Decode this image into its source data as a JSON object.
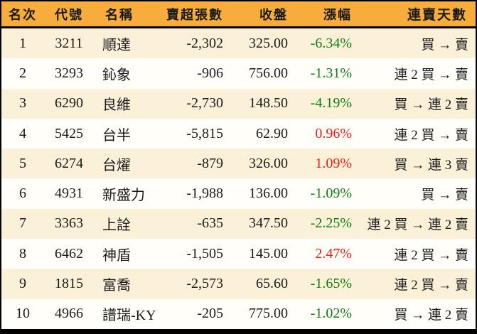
{
  "colors": {
    "header_bg": "#F7AC3B",
    "row_odd_bg": "#FBF1D8",
    "row_even_bg": "#FFFEF9",
    "border": "#000000",
    "text": "#1A1A1A",
    "change_up": "#F21B10",
    "change_down": "#0B7D11"
  },
  "table": {
    "headers": [
      "名次",
      "代號",
      "名稱",
      "賣超張數",
      "收盤",
      "漲幅",
      "連賣天數"
    ],
    "rows": [
      {
        "rank": "1",
        "code": "3211",
        "name": "順達",
        "net_sell": "-2,302",
        "close": "325.00",
        "change": "-6.34%",
        "change_dir": "down",
        "streak": "買 → 賣"
      },
      {
        "rank": "2",
        "code": "3293",
        "name": "鈊象",
        "net_sell": "-906",
        "close": "756.00",
        "change": "-1.31%",
        "change_dir": "down",
        "streak": "連 2 買 → 賣"
      },
      {
        "rank": "3",
        "code": "6290",
        "name": "良維",
        "net_sell": "-2,730",
        "close": "148.50",
        "change": "-4.19%",
        "change_dir": "down",
        "streak": "買 → 連 2 賣"
      },
      {
        "rank": "4",
        "code": "5425",
        "name": "台半",
        "net_sell": "-5,815",
        "close": "62.90",
        "change": "0.96%",
        "change_dir": "up",
        "streak": "連 2 買 → 賣"
      },
      {
        "rank": "5",
        "code": "6274",
        "name": "台燿",
        "net_sell": "-879",
        "close": "326.00",
        "change": "1.09%",
        "change_dir": "up",
        "streak": "買 → 連 3 賣"
      },
      {
        "rank": "6",
        "code": "4931",
        "name": "新盛力",
        "net_sell": "-1,988",
        "close": "136.00",
        "change": "-1.09%",
        "change_dir": "down",
        "streak": "買 → 賣"
      },
      {
        "rank": "7",
        "code": "3363",
        "name": "上詮",
        "net_sell": "-635",
        "close": "347.50",
        "change": "-2.25%",
        "change_dir": "down",
        "streak": "連 2 買 → 連 2 賣"
      },
      {
        "rank": "8",
        "code": "6462",
        "name": "神盾",
        "net_sell": "-1,505",
        "close": "145.00",
        "change": "2.47%",
        "change_dir": "up",
        "streak": "連 2 買 → 賣"
      },
      {
        "rank": "9",
        "code": "1815",
        "name": "富喬",
        "net_sell": "-2,573",
        "close": "65.60",
        "change": "-1.65%",
        "change_dir": "down",
        "streak": "連 2 買 → 賣"
      },
      {
        "rank": "10",
        "code": "4966",
        "name": "譜瑞-KY",
        "net_sell": "-205",
        "close": "775.00",
        "change": "-1.02%",
        "change_dir": "down",
        "streak": "買 → 連 2 賣"
      }
    ]
  },
  "chart_data": {
    "type": "table",
    "columns": [
      "名次",
      "代號",
      "名稱",
      "賣超張數",
      "收盤",
      "漲幅",
      "連賣天數"
    ],
    "rows": [
      [
        "1",
        "3211",
        "順達",
        "-2,302",
        "325.00",
        "-6.34%",
        "買 → 賣"
      ],
      [
        "2",
        "3293",
        "鈊象",
        "-906",
        "756.00",
        "-1.31%",
        "連 2 買 → 賣"
      ],
      [
        "3",
        "6290",
        "良維",
        "-2,730",
        "148.50",
        "-4.19%",
        "買 → 連 2 賣"
      ],
      [
        "4",
        "5425",
        "台半",
        "-5,815",
        "62.90",
        "0.96%",
        "連 2 買 → 賣"
      ],
      [
        "5",
        "6274",
        "台燿",
        "-879",
        "326.00",
        "1.09%",
        "買 → 連 3 賣"
      ],
      [
        "6",
        "4931",
        "新盛力",
        "-1,988",
        "136.00",
        "-1.09%",
        "買 → 賣"
      ],
      [
        "7",
        "3363",
        "上詮",
        "-635",
        "347.50",
        "-2.25%",
        "連 2 買 → 連 2 賣"
      ],
      [
        "8",
        "6462",
        "神盾",
        "-1,505",
        "145.00",
        "2.47%",
        "連 2 買 → 賣"
      ],
      [
        "9",
        "1815",
        "富喬",
        "-2,573",
        "65.60",
        "-1.65%",
        "連 2 買 → 賣"
      ],
      [
        "10",
        "4966",
        "譜瑞-KY",
        "-205",
        "775.00",
        "-1.02%",
        "買 → 連 2 賣"
      ]
    ],
    "notes": "Taiwan stock net-sell ranking table; change% colored green when negative (down), red when positive (up)"
  }
}
